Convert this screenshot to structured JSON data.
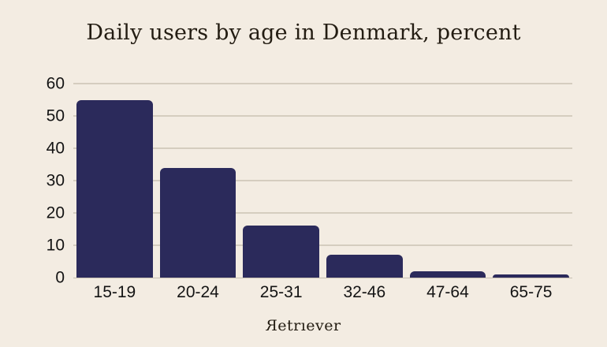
{
  "page": {
    "background_color": "#f3ece2"
  },
  "chart_data": {
    "type": "bar",
    "title": "Daily users by age in Denmark, percent",
    "categories": [
      "15-19",
      "20-24",
      "25-31",
      "32-46",
      "47-64",
      "65-75"
    ],
    "values": [
      55,
      34,
      16,
      7,
      2,
      1
    ],
    "xlabel": "",
    "ylabel": "",
    "ylim": [
      0,
      60
    ],
    "yticks": [
      0,
      10,
      20,
      30,
      40,
      50,
      60
    ],
    "grid": true,
    "legend": false,
    "bar_color": "#2b2a5b",
    "grid_color": "#d5cdbf",
    "baseline_color": "#c8c0b2",
    "axis_text_color": "#141414",
    "title_color": "#231c12"
  },
  "footer": {
    "brand": "Retriever",
    "brand_display": {
      "first": "R",
      "rest": "etrıever"
    }
  }
}
